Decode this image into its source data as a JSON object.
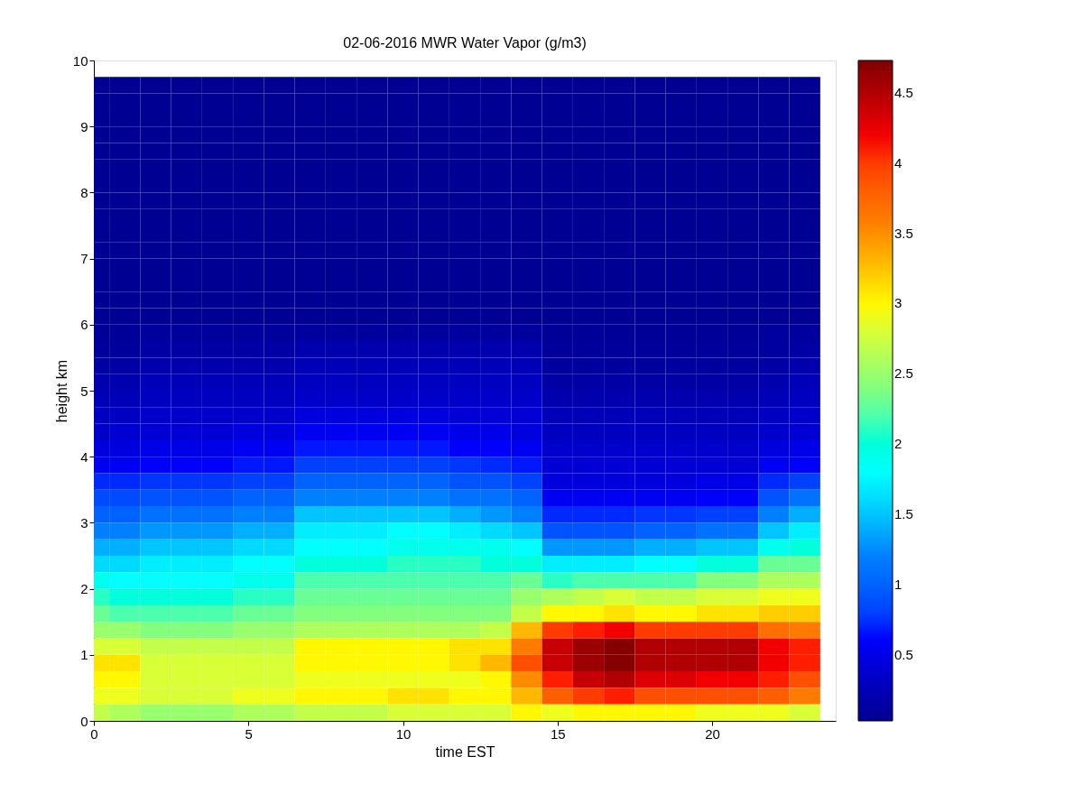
{
  "chart_data": {
    "type": "heatmap",
    "title": "02-06-2016 MWR Water Vapor (g/m3)",
    "xlabel": "time EST",
    "ylabel": "height km",
    "x": [
      0,
      1,
      2,
      3,
      4,
      5,
      6,
      7,
      8,
      9,
      10,
      11,
      12,
      13,
      14,
      15,
      16,
      17,
      18,
      19,
      20,
      21,
      22,
      23
    ],
    "y": [
      9.625,
      9.375,
      9.125,
      8.875,
      8.625,
      8.375,
      8.125,
      7.875,
      7.625,
      7.375,
      7.125,
      6.875,
      6.625,
      6.375,
      6.125,
      5.875,
      5.625,
      5.375,
      5.125,
      4.875,
      4.625,
      4.375,
      4.125,
      3.875,
      3.625,
      3.375,
      3.125,
      2.875,
      2.625,
      2.375,
      2.125,
      1.875,
      1.625,
      1.375,
      1.125,
      0.875,
      0.625,
      0.375,
      0.125
    ],
    "xlim": [
      0,
      24
    ],
    "xticks": [
      0,
      5,
      10,
      15,
      20
    ],
    "ylim": [
      0,
      10
    ],
    "yticks": [
      0,
      1,
      2,
      3,
      4,
      5,
      6,
      7,
      8,
      9,
      10
    ],
    "clim": [
      0.03,
      4.73
    ],
    "cticks": [
      0.5,
      1,
      1.5,
      2,
      2.5,
      3,
      3.5,
      4,
      4.5
    ],
    "grid": false,
    "cells": [
      [
        0.05,
        0.05,
        0.05,
        0.05,
        0.05,
        0.05,
        0.05,
        0.05,
        0.05,
        0.05,
        0.05,
        0.05,
        0.05,
        0.05,
        0.05,
        0.05,
        0.05,
        0.05,
        0.05,
        0.05,
        0.05,
        0.05,
        0.05,
        0.05
      ],
      [
        0.05,
        0.05,
        0.05,
        0.05,
        0.05,
        0.05,
        0.05,
        0.05,
        0.05,
        0.05,
        0.05,
        0.05,
        0.05,
        0.05,
        0.05,
        0.05,
        0.05,
        0.05,
        0.05,
        0.05,
        0.05,
        0.05,
        0.05,
        0.05
      ],
      [
        0.05,
        0.05,
        0.05,
        0.05,
        0.05,
        0.05,
        0.05,
        0.05,
        0.05,
        0.05,
        0.05,
        0.05,
        0.05,
        0.05,
        0.05,
        0.05,
        0.05,
        0.05,
        0.05,
        0.05,
        0.05,
        0.05,
        0.05,
        0.05
      ],
      [
        0.05,
        0.05,
        0.05,
        0.05,
        0.05,
        0.05,
        0.05,
        0.05,
        0.05,
        0.05,
        0.05,
        0.05,
        0.05,
        0.05,
        0.05,
        0.05,
        0.05,
        0.05,
        0.05,
        0.05,
        0.05,
        0.05,
        0.05,
        0.05
      ],
      [
        0.05,
        0.05,
        0.05,
        0.05,
        0.05,
        0.05,
        0.05,
        0.05,
        0.05,
        0.05,
        0.05,
        0.05,
        0.05,
        0.05,
        0.05,
        0.05,
        0.05,
        0.05,
        0.05,
        0.05,
        0.05,
        0.05,
        0.05,
        0.05
      ],
      [
        0.05,
        0.05,
        0.05,
        0.05,
        0.05,
        0.05,
        0.05,
        0.05,
        0.05,
        0.05,
        0.05,
        0.05,
        0.05,
        0.05,
        0.05,
        0.05,
        0.05,
        0.05,
        0.05,
        0.05,
        0.05,
        0.05,
        0.05,
        0.05
      ],
      [
        0.05,
        0.05,
        0.05,
        0.05,
        0.05,
        0.05,
        0.05,
        0.05,
        0.05,
        0.05,
        0.05,
        0.05,
        0.05,
        0.05,
        0.05,
        0.05,
        0.05,
        0.05,
        0.05,
        0.05,
        0.05,
        0.05,
        0.05,
        0.05
      ],
      [
        0.05,
        0.05,
        0.05,
        0.05,
        0.05,
        0.05,
        0.05,
        0.05,
        0.05,
        0.05,
        0.05,
        0.05,
        0.05,
        0.05,
        0.05,
        0.05,
        0.05,
        0.05,
        0.05,
        0.05,
        0.05,
        0.05,
        0.05,
        0.05
      ],
      [
        0.05,
        0.05,
        0.05,
        0.05,
        0.05,
        0.05,
        0.05,
        0.05,
        0.05,
        0.05,
        0.05,
        0.05,
        0.05,
        0.05,
        0.05,
        0.05,
        0.05,
        0.05,
        0.05,
        0.05,
        0.05,
        0.05,
        0.05,
        0.05
      ],
      [
        0.05,
        0.05,
        0.05,
        0.05,
        0.05,
        0.05,
        0.05,
        0.05,
        0.05,
        0.05,
        0.05,
        0.05,
        0.05,
        0.05,
        0.05,
        0.05,
        0.05,
        0.05,
        0.05,
        0.05,
        0.05,
        0.05,
        0.05,
        0.05
      ],
      [
        0.05,
        0.05,
        0.05,
        0.05,
        0.05,
        0.05,
        0.05,
        0.05,
        0.05,
        0.05,
        0.05,
        0.05,
        0.05,
        0.05,
        0.05,
        0.05,
        0.05,
        0.05,
        0.05,
        0.05,
        0.05,
        0.05,
        0.05,
        0.05
      ],
      [
        0.05,
        0.05,
        0.05,
        0.05,
        0.05,
        0.05,
        0.05,
        0.05,
        0.05,
        0.05,
        0.05,
        0.05,
        0.05,
        0.05,
        0.05,
        0.05,
        0.05,
        0.05,
        0.05,
        0.05,
        0.05,
        0.05,
        0.05,
        0.05
      ],
      [
        0.05,
        0.05,
        0.05,
        0.05,
        0.05,
        0.05,
        0.05,
        0.05,
        0.05,
        0.05,
        0.05,
        0.05,
        0.05,
        0.05,
        0.05,
        0.05,
        0.05,
        0.05,
        0.05,
        0.05,
        0.05,
        0.05,
        0.05,
        0.05
      ],
      [
        0.05,
        0.05,
        0.05,
        0.05,
        0.05,
        0.05,
        0.05,
        0.05,
        0.05,
        0.05,
        0.05,
        0.05,
        0.05,
        0.05,
        0.05,
        0.05,
        0.05,
        0.05,
        0.05,
        0.05,
        0.05,
        0.05,
        0.05,
        0.05
      ],
      [
        0.05,
        0.05,
        0.05,
        0.05,
        0.05,
        0.05,
        0.05,
        0.05,
        0.05,
        0.05,
        0.05,
        0.05,
        0.05,
        0.05,
        0.05,
        0.05,
        0.05,
        0.05,
        0.05,
        0.05,
        0.05,
        0.05,
        0.05,
        0.05
      ],
      [
        0.08,
        0.08,
        0.1,
        0.1,
        0.1,
        0.1,
        0.1,
        0.12,
        0.12,
        0.12,
        0.12,
        0.12,
        0.12,
        0.12,
        0.12,
        0.08,
        0.08,
        0.08,
        0.08,
        0.08,
        0.08,
        0.08,
        0.1,
        0.1
      ],
      [
        0.1,
        0.1,
        0.15,
        0.15,
        0.15,
        0.15,
        0.15,
        0.2,
        0.2,
        0.2,
        0.2,
        0.2,
        0.2,
        0.2,
        0.2,
        0.1,
        0.1,
        0.1,
        0.1,
        0.1,
        0.1,
        0.1,
        0.12,
        0.15
      ],
      [
        0.15,
        0.15,
        0.2,
        0.2,
        0.2,
        0.2,
        0.2,
        0.25,
        0.25,
        0.25,
        0.25,
        0.25,
        0.25,
        0.25,
        0.25,
        0.12,
        0.12,
        0.12,
        0.12,
        0.12,
        0.12,
        0.12,
        0.15,
        0.2
      ],
      [
        0.2,
        0.2,
        0.25,
        0.25,
        0.25,
        0.25,
        0.25,
        0.3,
        0.3,
        0.3,
        0.3,
        0.3,
        0.3,
        0.3,
        0.3,
        0.15,
        0.15,
        0.15,
        0.15,
        0.15,
        0.15,
        0.15,
        0.2,
        0.25
      ],
      [
        0.25,
        0.25,
        0.3,
        0.3,
        0.3,
        0.3,
        0.3,
        0.35,
        0.35,
        0.35,
        0.35,
        0.35,
        0.35,
        0.35,
        0.35,
        0.2,
        0.2,
        0.2,
        0.2,
        0.2,
        0.2,
        0.2,
        0.25,
        0.3
      ],
      [
        0.3,
        0.3,
        0.35,
        0.35,
        0.35,
        0.35,
        0.35,
        0.45,
        0.45,
        0.45,
        0.45,
        0.45,
        0.4,
        0.4,
        0.4,
        0.25,
        0.25,
        0.25,
        0.25,
        0.25,
        0.25,
        0.25,
        0.3,
        0.35
      ],
      [
        0.35,
        0.38,
        0.4,
        0.4,
        0.4,
        0.45,
        0.45,
        0.55,
        0.55,
        0.55,
        0.55,
        0.55,
        0.5,
        0.5,
        0.45,
        0.3,
        0.3,
        0.3,
        0.3,
        0.3,
        0.3,
        0.3,
        0.35,
        0.4
      ],
      [
        0.45,
        0.45,
        0.5,
        0.5,
        0.5,
        0.55,
        0.55,
        0.65,
        0.65,
        0.65,
        0.65,
        0.65,
        0.6,
        0.6,
        0.55,
        0.35,
        0.35,
        0.35,
        0.35,
        0.35,
        0.35,
        0.35,
        0.45,
        0.5
      ],
      [
        0.55,
        0.55,
        0.6,
        0.6,
        0.6,
        0.65,
        0.65,
        0.8,
        0.8,
        0.8,
        0.8,
        0.8,
        0.75,
        0.7,
        0.65,
        0.4,
        0.4,
        0.4,
        0.4,
        0.4,
        0.4,
        0.4,
        0.55,
        0.6
      ],
      [
        0.7,
        0.7,
        0.75,
        0.75,
        0.75,
        0.8,
        0.8,
        1.0,
        1.0,
        1.0,
        1.0,
        1.0,
        0.9,
        0.9,
        0.8,
        0.45,
        0.45,
        0.45,
        0.45,
        0.45,
        0.5,
        0.5,
        0.7,
        0.8
      ],
      [
        0.85,
        0.85,
        0.9,
        0.9,
        0.9,
        1.0,
        1.0,
        1.2,
        1.2,
        1.2,
        1.2,
        1.2,
        1.1,
        1.1,
        1.0,
        0.55,
        0.55,
        0.55,
        0.55,
        0.55,
        0.6,
        0.6,
        0.9,
        1.1
      ],
      [
        1.0,
        1.0,
        1.1,
        1.1,
        1.1,
        1.2,
        1.2,
        1.5,
        1.5,
        1.5,
        1.5,
        1.5,
        1.4,
        1.3,
        1.2,
        0.7,
        0.7,
        0.7,
        0.75,
        0.75,
        0.8,
        0.8,
        1.2,
        1.4
      ],
      [
        1.2,
        1.2,
        1.3,
        1.3,
        1.3,
        1.4,
        1.4,
        1.7,
        1.7,
        1.7,
        1.8,
        1.8,
        1.7,
        1.6,
        1.5,
        0.9,
        0.9,
        0.9,
        1.0,
        1.0,
        1.1,
        1.1,
        1.5,
        1.7
      ],
      [
        1.4,
        1.4,
        1.5,
        1.5,
        1.5,
        1.6,
        1.6,
        1.8,
        1.8,
        1.8,
        1.9,
        1.9,
        1.9,
        1.9,
        1.8,
        1.3,
        1.3,
        1.3,
        1.4,
        1.4,
        1.5,
        1.5,
        1.9,
        2.0
      ],
      [
        1.6,
        1.6,
        1.7,
        1.7,
        1.7,
        1.8,
        1.8,
        2.0,
        2.0,
        2.0,
        2.1,
        2.1,
        2.1,
        2.0,
        2.0,
        1.7,
        1.7,
        1.7,
        1.8,
        1.8,
        2.0,
        2.0,
        2.3,
        2.3
      ],
      [
        1.9,
        1.8,
        1.8,
        1.8,
        1.8,
        1.9,
        1.9,
        2.2,
        2.2,
        2.2,
        2.2,
        2.2,
        2.2,
        2.2,
        2.3,
        2.1,
        2.2,
        2.2,
        2.2,
        2.2,
        2.4,
        2.4,
        2.6,
        2.6
      ],
      [
        2.1,
        2.0,
        2.0,
        2.0,
        2.0,
        2.1,
        2.1,
        2.3,
        2.3,
        2.3,
        2.3,
        2.3,
        2.3,
        2.3,
        2.5,
        2.6,
        2.7,
        2.8,
        2.7,
        2.7,
        2.8,
        2.8,
        2.9,
        2.9
      ],
      [
        2.3,
        2.2,
        2.2,
        2.2,
        2.2,
        2.3,
        2.3,
        2.4,
        2.4,
        2.4,
        2.4,
        2.4,
        2.4,
        2.4,
        2.7,
        3.0,
        3.0,
        3.1,
        3.0,
        3.0,
        3.1,
        3.1,
        3.2,
        3.2
      ],
      [
        2.5,
        2.5,
        2.4,
        2.4,
        2.4,
        2.5,
        2.5,
        2.6,
        2.6,
        2.6,
        2.6,
        2.6,
        2.6,
        2.7,
        3.3,
        4.0,
        4.1,
        4.2,
        4.0,
        4.0,
        4.0,
        4.0,
        3.7,
        3.6
      ],
      [
        2.8,
        2.8,
        2.7,
        2.7,
        2.7,
        2.7,
        2.7,
        3.0,
        3.0,
        3.0,
        3.0,
        3.0,
        3.1,
        3.1,
        3.6,
        4.4,
        4.6,
        4.7,
        4.5,
        4.5,
        4.5,
        4.5,
        4.2,
        4.1
      ],
      [
        3.1,
        3.1,
        2.8,
        2.8,
        2.8,
        2.8,
        2.8,
        3.0,
        3.0,
        3.0,
        3.0,
        3.0,
        3.1,
        3.3,
        3.9,
        4.4,
        4.6,
        4.7,
        4.5,
        4.5,
        4.5,
        4.5,
        4.2,
        4.1
      ],
      [
        3.0,
        3.0,
        2.8,
        2.8,
        2.8,
        2.8,
        2.8,
        2.9,
        2.9,
        2.9,
        2.9,
        2.9,
        2.9,
        3.0,
        3.5,
        4.1,
        4.4,
        4.5,
        4.3,
        4.3,
        4.2,
        4.2,
        4.1,
        3.9
      ],
      [
        2.9,
        2.9,
        2.8,
        2.8,
        2.8,
        2.9,
        2.9,
        3.0,
        3.0,
        3.0,
        3.1,
        3.1,
        3.0,
        3.0,
        3.3,
        3.8,
        4.0,
        4.1,
        3.9,
        3.9,
        3.9,
        3.9,
        3.8,
        3.6
      ],
      [
        2.7,
        2.6,
        2.5,
        2.5,
        2.5,
        2.6,
        2.6,
        2.7,
        2.7,
        2.7,
        2.8,
        2.8,
        2.8,
        2.8,
        3.0,
        2.9,
        3.0,
        3.0,
        3.0,
        3.0,
        2.9,
        2.9,
        2.9,
        2.8
      ]
    ]
  }
}
